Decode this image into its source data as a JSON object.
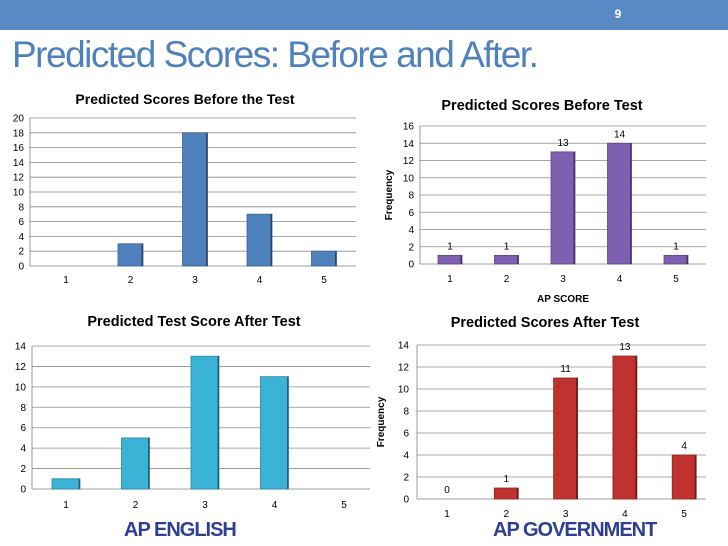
{
  "slide": {
    "number": "9",
    "title": "Predicted Scores: Before and After."
  },
  "footers": {
    "left": "AP ENGLISH",
    "right": "AP GOVERNMENT"
  },
  "colors": {
    "topbar": "#5a8ac6",
    "title": "#4f81bd",
    "footer": "#2e3f93"
  },
  "chart_data": [
    {
      "id": "eng-before",
      "type": "bar",
      "title": "Predicted Scores Before the Test",
      "categories": [
        "1",
        "2",
        "3",
        "4",
        "5"
      ],
      "values": [
        0,
        3,
        18,
        7,
        2
      ],
      "ylim": [
        0,
        20
      ],
      "ytick_step": 2,
      "xlabel": "",
      "ylabel": "",
      "grid": true,
      "data_labels": [],
      "color": "#4f81bd"
    },
    {
      "id": "gov-before",
      "type": "bar",
      "title": "Predicted Scores Before Test",
      "categories": [
        "1",
        "2",
        "3",
        "4",
        "5"
      ],
      "values": [
        1,
        1,
        13,
        14,
        1
      ],
      "ylim": [
        0,
        16
      ],
      "ytick_step": 2,
      "xlabel": "AP SCORE",
      "ylabel": "Frequency",
      "grid": true,
      "data_labels": [
        "1",
        "1",
        "13",
        "14",
        "1"
      ],
      "color": "#7f5fb0"
    },
    {
      "id": "eng-after",
      "type": "bar",
      "title": "Predicted Test Score After Test",
      "categories": [
        "1",
        "2",
        "3",
        "4",
        "5"
      ],
      "values": [
        1,
        5,
        13,
        11,
        0
      ],
      "ylim": [
        0,
        14
      ],
      "ytick_step": 2,
      "xlabel": "",
      "ylabel": "",
      "grid": true,
      "data_labels": [],
      "color": "#3bb3d6"
    },
    {
      "id": "gov-after",
      "type": "bar",
      "title": "Predicted Scores After Test",
      "categories": [
        "1",
        "2",
        "3",
        "4",
        "5"
      ],
      "values": [
        0,
        1,
        11,
        13,
        4
      ],
      "ylim": [
        0,
        14
      ],
      "ytick_step": 2,
      "xlabel": "",
      "ylabel": "Frequency",
      "grid": true,
      "data_labels": [
        "0",
        "1",
        "11",
        "13",
        "4"
      ],
      "color": "#c0322f"
    }
  ]
}
